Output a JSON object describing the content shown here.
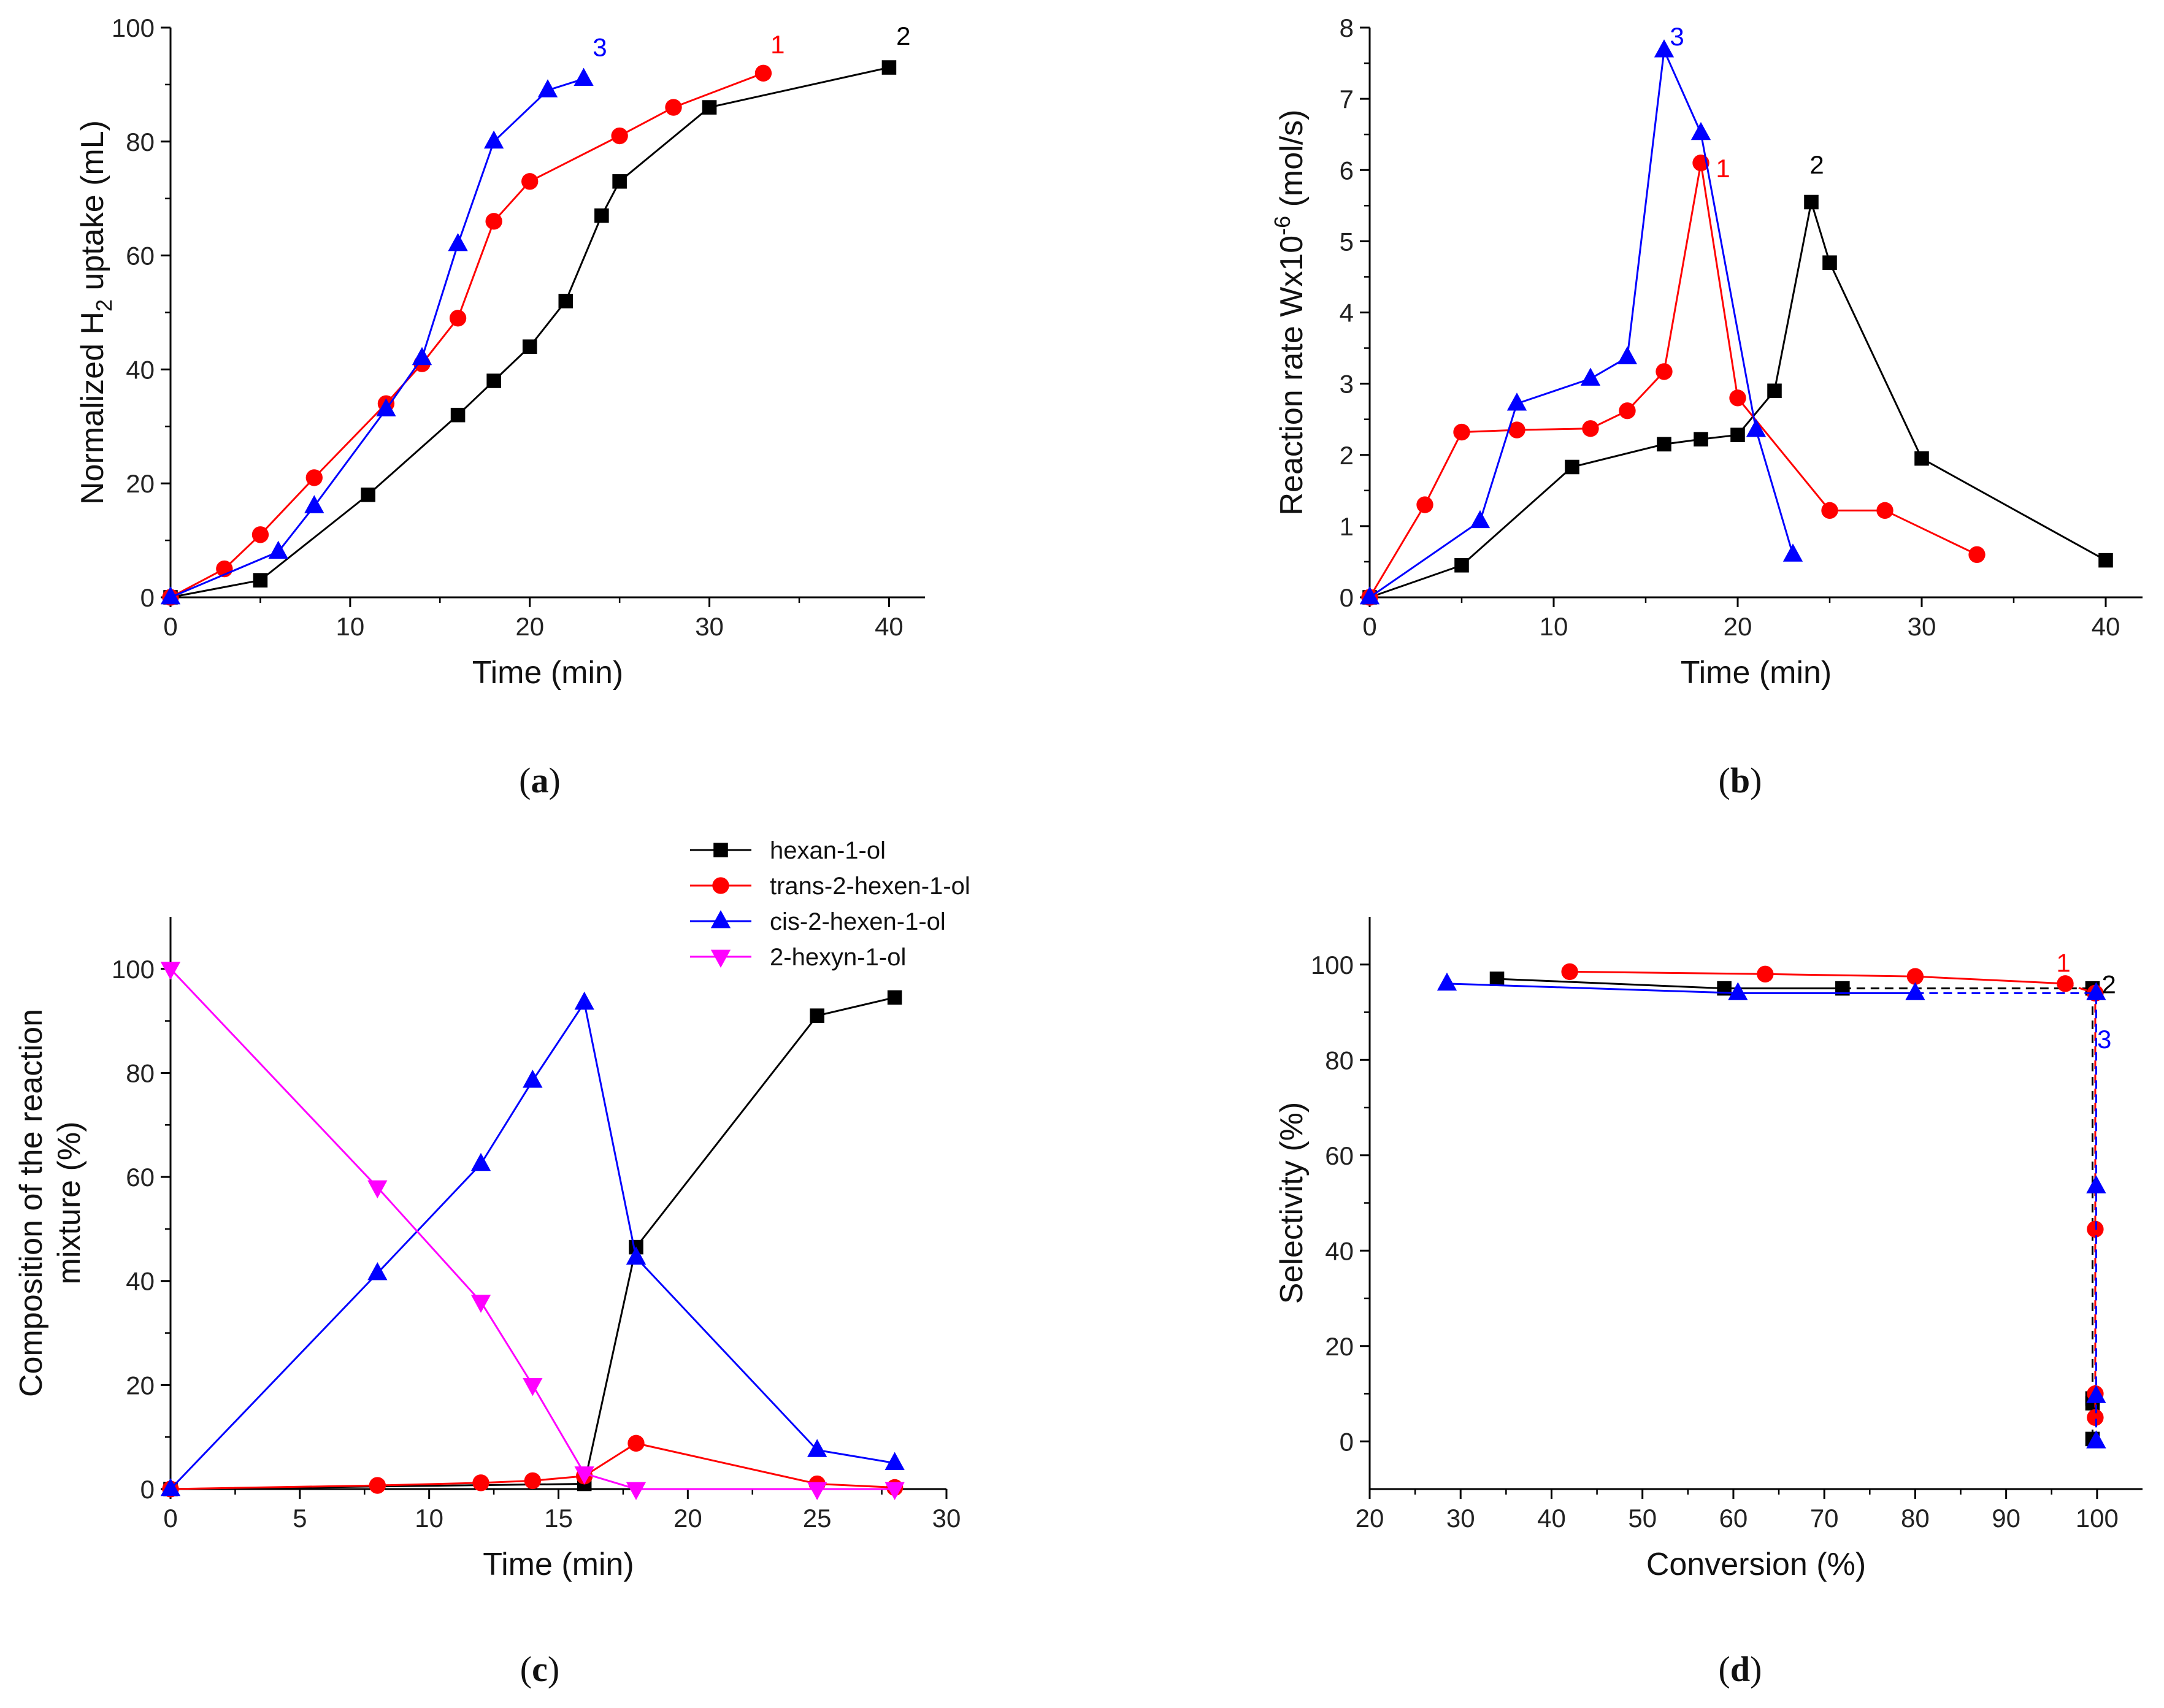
{
  "chart_data": [
    {
      "id": "a",
      "type": "line",
      "panel_label": "a",
      "xlabel": "Time (min)",
      "ylabel": "Normalized H2 uptake (mL)",
      "ylabel_parts": {
        "pre": "Normalized H",
        "sub": "2",
        "post": " uptake (mL)"
      },
      "xlim": [
        0,
        42
      ],
      "ylim": [
        0,
        100
      ],
      "xticks": [
        0,
        10,
        20,
        30,
        40
      ],
      "yticks": [
        0,
        20,
        40,
        60,
        80,
        100
      ],
      "series": [
        {
          "name": "2",
          "color": "#000000",
          "marker": "square",
          "x": [
            0,
            5,
            11,
            16,
            18,
            20,
            22,
            24,
            25,
            30,
            40
          ],
          "y": [
            0,
            3,
            18,
            32,
            38,
            44,
            52,
            67,
            73,
            86,
            93
          ]
        },
        {
          "name": "1",
          "color": "#ff0000",
          "marker": "circle",
          "x": [
            0,
            3,
            5,
            8,
            12,
            14,
            16,
            18,
            20,
            25,
            28,
            33
          ],
          "y": [
            0,
            5,
            11,
            21,
            34,
            41,
            49,
            66,
            73,
            81,
            86,
            92
          ]
        },
        {
          "name": "3",
          "color": "#0000ff",
          "marker": "triangle-up",
          "x": [
            0,
            6,
            8,
            12,
            14,
            16,
            18,
            21,
            23
          ],
          "y": [
            0,
            8,
            16,
            33,
            42,
            62,
            80,
            89,
            91
          ]
        }
      ],
      "annotations": [
        {
          "text": "3",
          "color": "#0000ff",
          "x": 23.9,
          "y": 95
        },
        {
          "text": "1",
          "color": "#ff0000",
          "x": 33.8,
          "y": 95.5
        },
        {
          "text": "2",
          "color": "#000000",
          "x": 40.8,
          "y": 97
        }
      ]
    },
    {
      "id": "b",
      "type": "line",
      "panel_label": "b",
      "xlabel": "Time (min)",
      "ylabel": "Reaction rate Wx10-6 (mol/s)",
      "ylabel_parts": {
        "pre": "Reaction rate Wx10",
        "sup": "-6",
        "post": " (mol/s)"
      },
      "xlim": [
        0,
        42
      ],
      "ylim": [
        0,
        8
      ],
      "xticks": [
        0,
        10,
        20,
        30,
        40
      ],
      "yticks": [
        0,
        1,
        2,
        3,
        4,
        5,
        6,
        7,
        8
      ],
      "series": [
        {
          "name": "2",
          "color": "#000000",
          "marker": "square",
          "x": [
            0,
            5,
            11,
            16,
            18,
            20,
            22,
            24,
            25,
            30,
            40
          ],
          "y": [
            0,
            0.45,
            1.83,
            2.15,
            2.22,
            2.28,
            2.9,
            5.55,
            4.7,
            1.95,
            0.52
          ]
        },
        {
          "name": "1",
          "color": "#ff0000",
          "marker": "circle",
          "x": [
            0,
            3,
            5,
            8,
            12,
            14,
            16,
            18,
            20,
            25,
            28,
            33
          ],
          "y": [
            0,
            1.3,
            2.32,
            2.35,
            2.37,
            2.62,
            3.17,
            6.1,
            2.8,
            1.22,
            1.22,
            0.6
          ]
        },
        {
          "name": "3",
          "color": "#0000ff",
          "marker": "triangle-up",
          "x": [
            0,
            6,
            8,
            12,
            14,
            16,
            18,
            21,
            23
          ],
          "y": [
            0,
            1.07,
            2.72,
            3.07,
            3.37,
            7.68,
            6.52,
            2.35,
            0.6
          ]
        }
      ],
      "annotations": [
        {
          "text": "3",
          "color": "#0000ff",
          "x": 16.7,
          "y": 7.75
        },
        {
          "text": "1",
          "color": "#ff0000",
          "x": 19.2,
          "y": 5.9
        },
        {
          "text": "2",
          "color": "#000000",
          "x": 24.3,
          "y": 5.95
        }
      ]
    },
    {
      "id": "c",
      "type": "line",
      "panel_label": "c",
      "xlabel": "Time (min)",
      "ylabel": "Composition of the reaction mixture (%)",
      "ylabel_lines": [
        "Composition of the reaction",
        "mixture (%)"
      ],
      "xlim": [
        0,
        30
      ],
      "ylim": [
        0,
        110
      ],
      "xticks": [
        0,
        5,
        10,
        15,
        20,
        25,
        30
      ],
      "yticks": [
        0,
        20,
        40,
        60,
        80,
        100
      ],
      "series": [
        {
          "name": "hexan-1-ol",
          "color": "#000000",
          "marker": "square",
          "x": [
            0,
            16,
            18,
            25,
            28
          ],
          "y": [
            0,
            1,
            46.5,
            91,
            94.5
          ]
        },
        {
          "name": "trans-2-hexen-1-ol",
          "color": "#ff0000",
          "marker": "circle",
          "x": [
            0,
            8,
            12,
            14,
            16,
            18,
            25,
            28
          ],
          "y": [
            0,
            0.7,
            1.2,
            1.6,
            2.5,
            8.8,
            1,
            0.3
          ]
        },
        {
          "name": "cis-2-hexen-1-ol",
          "color": "#0000ff",
          "marker": "triangle-up",
          "x": [
            0,
            8,
            12,
            14,
            16,
            18,
            25,
            28
          ],
          "y": [
            0,
            41.5,
            62.5,
            78.5,
            93.5,
            44.5,
            7.5,
            5
          ]
        },
        {
          "name": "2-hexyn-1-ol",
          "color": "#ff00ff",
          "marker": "triangle-down",
          "x": [
            0,
            8,
            12,
            14,
            16,
            18,
            25,
            28
          ],
          "y": [
            100,
            58,
            36,
            20,
            3,
            0,
            0,
            0
          ]
        }
      ],
      "legend": {
        "position": "above-top-right"
      }
    },
    {
      "id": "d",
      "type": "line",
      "panel_label": "d",
      "xlabel": "Conversion (%)",
      "ylabel": "Selectivity (%)",
      "xlim": [
        20,
        105
      ],
      "ylim": [
        -10,
        110
      ],
      "xticks": [
        20,
        30,
        40,
        50,
        60,
        70,
        80,
        90,
        100
      ],
      "yticks": [
        0,
        20,
        40,
        60,
        80,
        100
      ],
      "series": [
        {
          "name": "2",
          "color": "#000000",
          "marker": "square",
          "x": [
            34,
            59,
            72
          ],
          "y": [
            97,
            95,
            95
          ]
        },
        {
          "name": "1",
          "color": "#ff0000",
          "marker": "circle",
          "x": [
            42,
            63.5,
            80,
            96.5
          ],
          "y": [
            98.5,
            98,
            97.5,
            96
          ]
        },
        {
          "name": "3",
          "color": "#0000ff",
          "marker": "triangle-up",
          "x": [
            28.5,
            60.5,
            80
          ],
          "y": [
            96,
            94,
            94
          ]
        }
      ],
      "dashed_series": [
        {
          "name": "2",
          "color": "#000000",
          "marker": "square",
          "x": [
            72,
            99.5,
            99.5,
            99.5,
            99.5
          ],
          "y": [
            95,
            95,
            9,
            8,
            0.5
          ]
        },
        {
          "name": "1",
          "color": "#ff0000",
          "marker": "circle",
          "x": [
            96.5,
            99.8,
            99.8,
            99.8,
            99.8
          ],
          "y": [
            96,
            94,
            44.5,
            10,
            5
          ]
        },
        {
          "name": "3",
          "color": "#0000ff",
          "marker": "triangle-up",
          "x": [
            80,
            99.9,
            99.9,
            99.9,
            99.9
          ],
          "y": [
            94,
            94,
            53.5,
            9.5,
            0
          ]
        }
      ],
      "annotations": [
        {
          "text": "1",
          "color": "#ff0000",
          "x": 96.3,
          "y": 98.5
        },
        {
          "text": "2",
          "color": "#000000",
          "x": 101.3,
          "y": 94
        },
        {
          "text": "3",
          "color": "#0000ff",
          "x": 100.8,
          "y": 82.5
        }
      ]
    }
  ]
}
